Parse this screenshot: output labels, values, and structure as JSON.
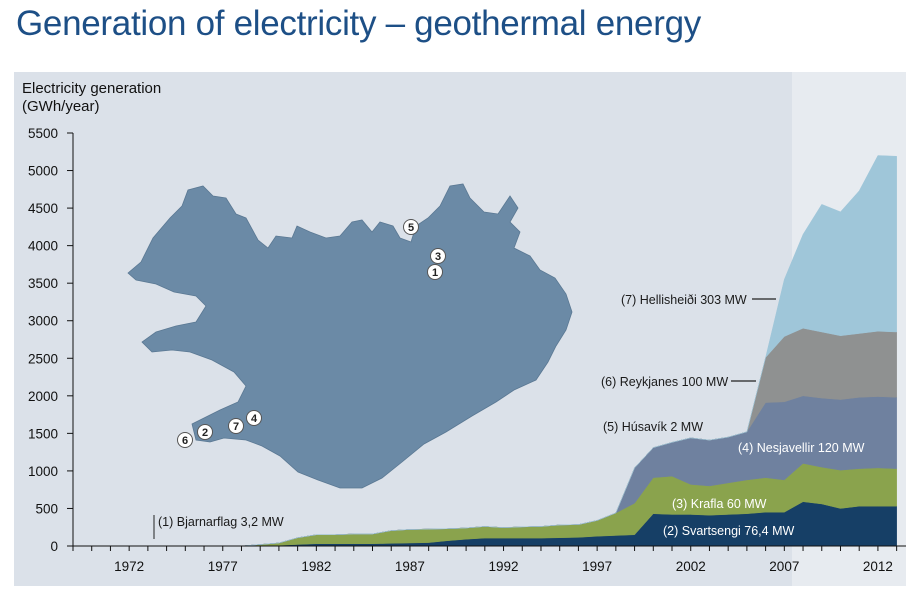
{
  "page": {
    "title": "Generation of electricity – geothermal energy"
  },
  "chart_data": {
    "type": "area",
    "stacked": true,
    "title": "Generation of electricity – geothermal energy",
    "ylabel_line1": "Electricity generation",
    "ylabel_line2": "(GWh/year)",
    "xlabel": "",
    "ylim": [
      0,
      5500
    ],
    "xlim": [
      1969,
      2013.5
    ],
    "yticks": [
      0,
      500,
      1000,
      1500,
      2000,
      2500,
      3000,
      3500,
      4000,
      4500,
      5000,
      5500
    ],
    "xticks": [
      1972,
      1977,
      1982,
      1987,
      1992,
      1997,
      2002,
      2007,
      2012
    ],
    "grid": false,
    "x": [
      1969,
      1970,
      1971,
      1972,
      1973,
      1974,
      1975,
      1976,
      1977,
      1978,
      1979,
      1980,
      1981,
      1982,
      1983,
      1984,
      1985,
      1986,
      1987,
      1988,
      1989,
      1990,
      1991,
      1992,
      1993,
      1994,
      1995,
      1996,
      1997,
      1998,
      1999,
      2000,
      2001,
      2002,
      2003,
      2004,
      2005,
      2006,
      2007,
      2008,
      2009,
      2010,
      2011,
      2012,
      2013
    ],
    "series": [
      {
        "name": "(2) Svartsengi 76,4 MW",
        "color": "#163f66",
        "label_color": "light",
        "values": [
          0,
          0,
          0,
          0,
          0,
          0,
          0,
          0,
          0,
          0,
          5,
          10,
          20,
          30,
          30,
          30,
          30,
          35,
          40,
          45,
          70,
          90,
          105,
          105,
          105,
          105,
          110,
          115,
          130,
          140,
          150,
          430,
          420,
          420,
          410,
          420,
          430,
          450,
          450,
          590,
          560,
          500,
          530,
          530,
          530
        ]
      },
      {
        "name": "(3) Krafla 60 MW",
        "color": "#8aa34d",
        "label_color": "light",
        "values": [
          0,
          0,
          0,
          0,
          0,
          0,
          0,
          0,
          0,
          0,
          15,
          30,
          90,
          120,
          120,
          130,
          130,
          170,
          180,
          180,
          160,
          150,
          155,
          140,
          150,
          155,
          170,
          170,
          210,
          300,
          420,
          480,
          510,
          400,
          390,
          420,
          450,
          460,
          430,
          510,
          490,
          510,
          500,
          510,
          500
        ]
      },
      {
        "name": "(4) Nesjavellir 120 MW",
        "color": "#6f819f",
        "label_color": "light",
        "values": [
          0,
          0,
          0,
          0,
          0,
          0,
          0,
          0,
          0,
          0,
          0,
          0,
          0,
          0,
          0,
          0,
          0,
          0,
          0,
          0,
          0,
          0,
          0,
          0,
          0,
          0,
          0,
          0,
          0,
          0,
          470,
          400,
          450,
          620,
          610,
          610,
          640,
          1000,
          1040,
          900,
          920,
          940,
          950,
          950,
          950
        ]
      },
      {
        "name": "(5) Húsavík 2 MW",
        "color": "#6f819f",
        "label_color": "dark",
        "values": [
          0,
          0,
          0,
          0,
          0,
          0,
          0,
          0,
          0,
          0,
          0,
          0,
          0,
          0,
          0,
          0,
          0,
          0,
          0,
          0,
          0,
          0,
          0,
          0,
          0,
          0,
          0,
          0,
          0,
          0,
          0,
          0,
          0,
          0,
          0,
          0,
          0,
          0,
          0,
          0,
          0,
          0,
          0,
          0,
          0
        ]
      },
      {
        "name": "(6) Reykjanes 100 MW",
        "color": "#8f9191",
        "label_color": "dark",
        "values": [
          0,
          0,
          0,
          0,
          0,
          0,
          0,
          0,
          0,
          0,
          0,
          0,
          0,
          0,
          0,
          0,
          0,
          0,
          0,
          0,
          0,
          0,
          0,
          0,
          0,
          0,
          0,
          0,
          0,
          0,
          0,
          0,
          0,
          0,
          0,
          0,
          0,
          600,
          870,
          900,
          880,
          850,
          850,
          870,
          870
        ]
      },
      {
        "name": "(7) Hellisheiði 303 MW",
        "color": "#9fc6d9",
        "label_color": "dark",
        "values": [
          0,
          0,
          0,
          0,
          0,
          0,
          0,
          0,
          0,
          0,
          0,
          0,
          0,
          0,
          0,
          0,
          0,
          0,
          0,
          0,
          0,
          0,
          0,
          0,
          0,
          0,
          0,
          0,
          0,
          0,
          0,
          0,
          0,
          0,
          0,
          0,
          0,
          0,
          760,
          1250,
          1700,
          1650,
          1900,
          2340,
          2340
        ]
      }
    ],
    "annotations": {
      "bjarnarflag": "(1) Bjarnarflag 3,2 MW"
    },
    "map": {
      "fill": "#6b8aa6",
      "markers": [
        "1",
        "2",
        "3",
        "4",
        "5",
        "6",
        "7"
      ]
    }
  }
}
